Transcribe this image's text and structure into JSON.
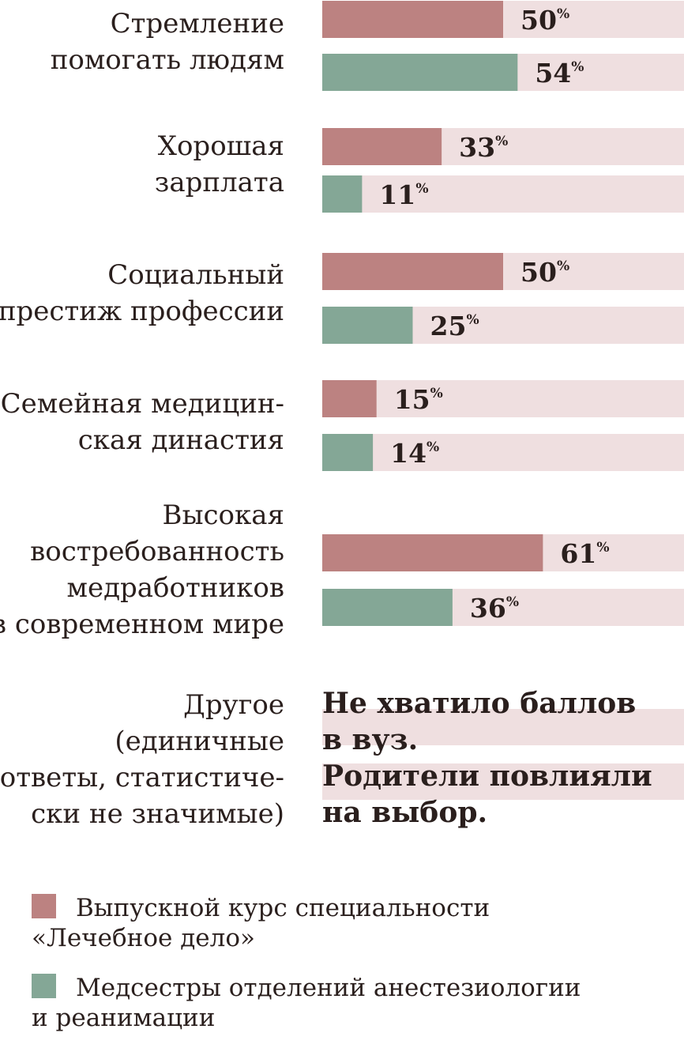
{
  "colors": {
    "series_1": "#bc8281",
    "series_2": "#84a796",
    "track": "#efdfe0",
    "text": "#2a1f1d"
  },
  "chart_data": {
    "type": "bar",
    "orientation": "horizontal",
    "xlim": [
      0,
      100
    ],
    "value_suffix": "%",
    "categories": [
      [
        "Стремление",
        "помогать людям"
      ],
      [
        "Хорошая",
        "зарплата"
      ],
      [
        "Социальный",
        "престиж профессии"
      ],
      [
        "Семейная медицин-",
        "ская династия"
      ],
      [
        "Высокая",
        "востребованность",
        "медработников",
        "в современном мире"
      ]
    ],
    "series": [
      {
        "name": "Выпускной курс специальности «Лечебное дело»",
        "values": [
          50,
          33,
          50,
          15,
          61
        ]
      },
      {
        "name": "Медсестры отделений анестезиологии и реанимации",
        "values": [
          54,
          11,
          25,
          14,
          36
        ]
      }
    ],
    "other": {
      "label": [
        "Другое",
        "(единичные",
        "ответы, статистиче-",
        "ски не значимые)"
      ],
      "text": [
        "Не хватило баллов",
        "в вуз.",
        "Родители повлияли",
        "на выбор."
      ]
    },
    "legend": {
      "position": "bottom-left",
      "entries": [
        [
          "Выпускной курс специальности",
          "«Лечебное дело»"
        ],
        [
          "Медсестры отделений анестезиологии",
          "и реанимации"
        ]
      ]
    },
    "grid": false
  }
}
